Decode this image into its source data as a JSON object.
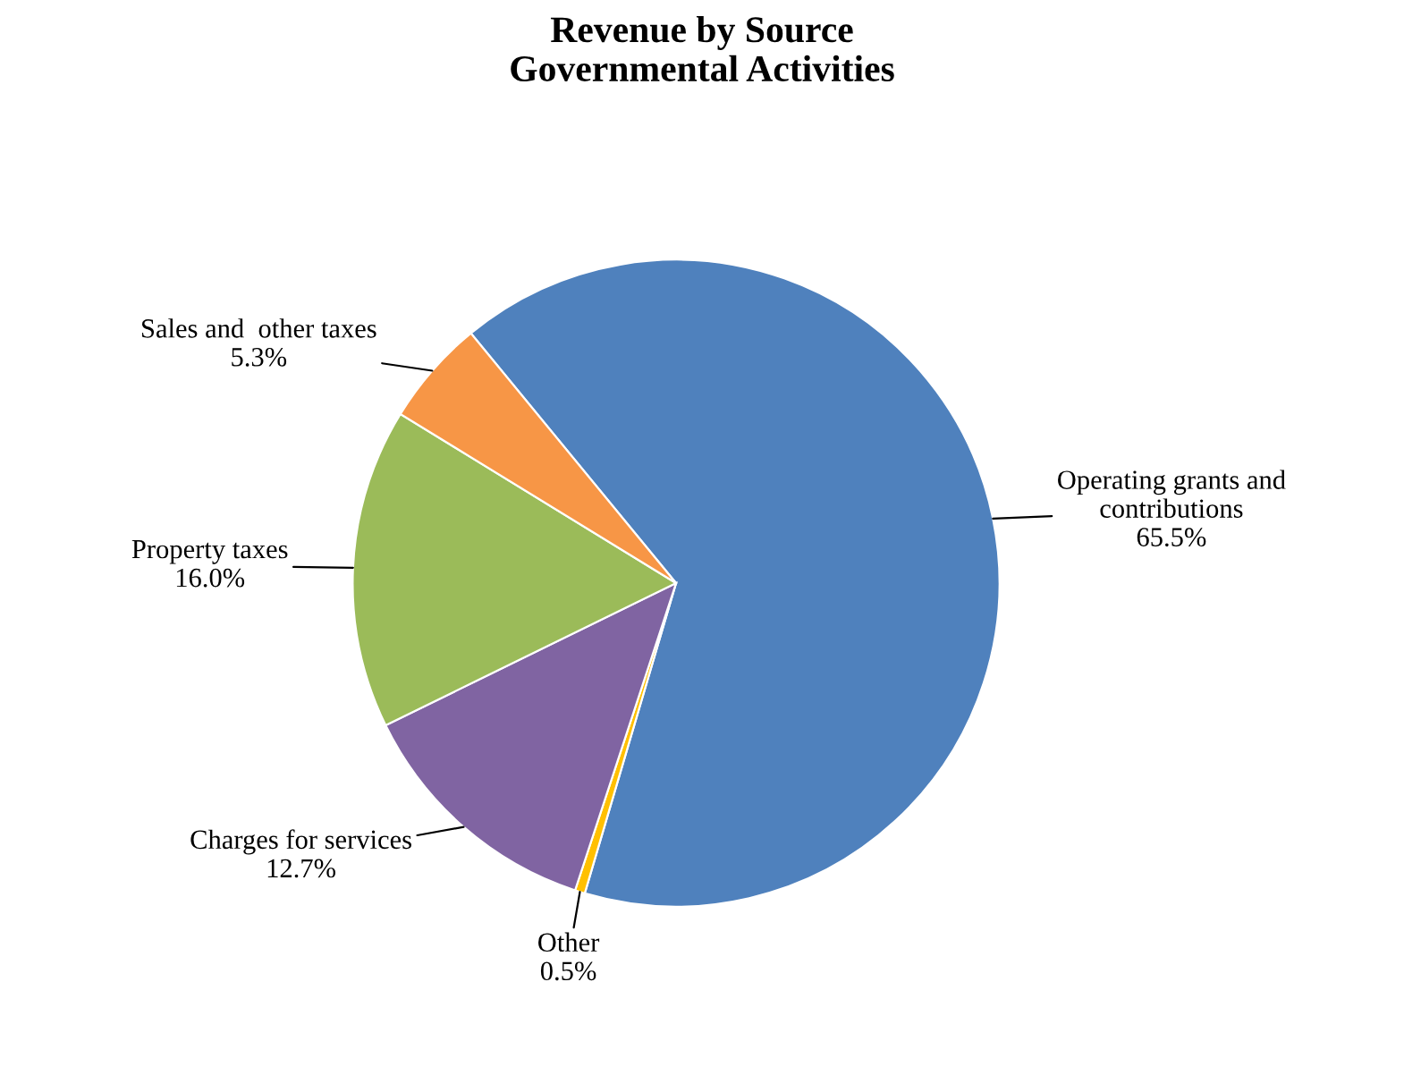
{
  "chart_data": {
    "type": "pie",
    "title": "Revenue by Source\nGovernmental Activities",
    "categories": [
      "Operating grants and\ncontributions",
      "Other",
      "Charges for services",
      "Property taxes",
      "Sales and  other taxes"
    ],
    "values": [
      65.5,
      0.5,
      12.7,
      16.0,
      5.3
    ],
    "value_labels": [
      "65.5%",
      "0.5%",
      "12.7%",
      "16.0%",
      "5.3%"
    ],
    "colors": [
      "#4f81bd",
      "#ffc000",
      "#8064a2",
      "#9bbb59",
      "#f79646"
    ],
    "legend": false
  }
}
